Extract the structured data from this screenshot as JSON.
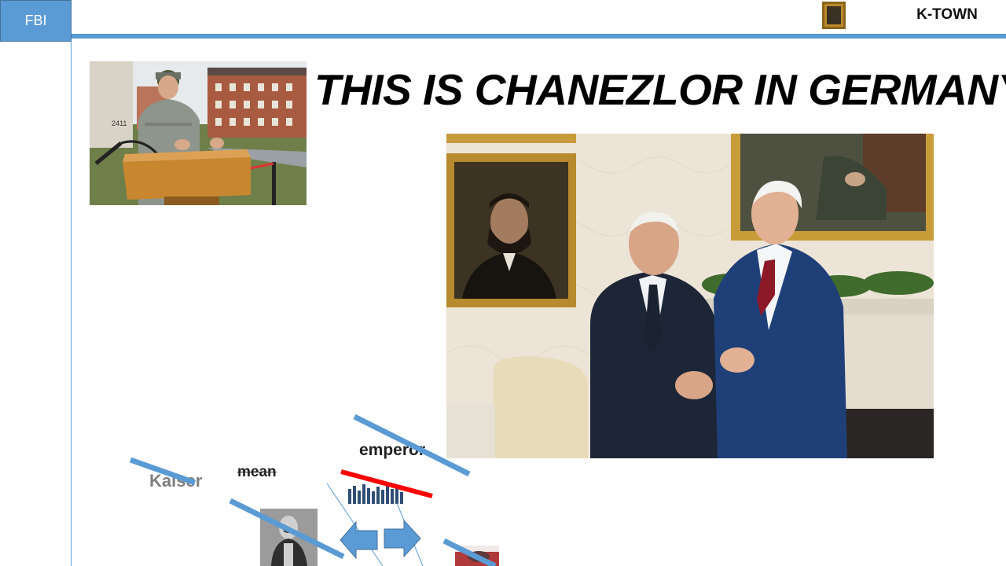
{
  "header": {
    "tab_label": "FBI",
    "right_label": "K-TOWN"
  },
  "slide": {
    "title": "THIS IS CHANEZLOR IN GERMANY"
  },
  "photos": {
    "soldier_building_number": "2411"
  },
  "labels": {
    "kaiser": "Kaiser",
    "mean": "mean",
    "emperor": "emperor"
  },
  "colors": {
    "accent_blue": "#5b9bd5",
    "strike_red": "#ff0000"
  },
  "icons": {
    "left_arrow": "left-arrow-icon",
    "right_arrow": "right-arrow-icon",
    "bar_chart": "bar-chart-icon"
  }
}
